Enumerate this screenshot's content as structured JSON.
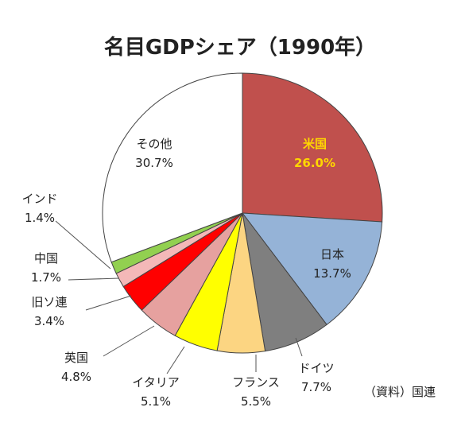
{
  "chart_data": {
    "type": "pie",
    "title": "名目GDPシェア（1990年）",
    "source_note": "（資料）国連",
    "slices": [
      {
        "name": "米国",
        "value": 26.0,
        "label_value": "26.0%",
        "color": "#c0504d"
      },
      {
        "name": "日本",
        "value": 13.7,
        "label_value": "13.7%",
        "color": "#95b3d7"
      },
      {
        "name": "ドイツ",
        "value": 7.7,
        "label_value": "7.7%",
        "color": "#7f7f7f"
      },
      {
        "name": "フランス",
        "value": 5.5,
        "label_value": "5.5%",
        "color": "#fcd582"
      },
      {
        "name": "イタリア",
        "value": 5.1,
        "label_value": "5.1%",
        "color": "#ffff00"
      },
      {
        "name": "英国",
        "value": 4.8,
        "label_value": "4.8%",
        "color": "#e6a19f"
      },
      {
        "name": "旧ソ連",
        "value": 3.4,
        "label_value": "3.4%",
        "color": "#ff0000"
      },
      {
        "name": "中国",
        "value": 1.7,
        "label_value": "1.7%",
        "color": "#f4b8b8"
      },
      {
        "name": "インド",
        "value": 1.4,
        "label_value": "1.4%",
        "color": "#92d050"
      },
      {
        "name": "その他",
        "value": 30.7,
        "label_value": "30.7%",
        "color": "#ffffff"
      }
    ]
  }
}
